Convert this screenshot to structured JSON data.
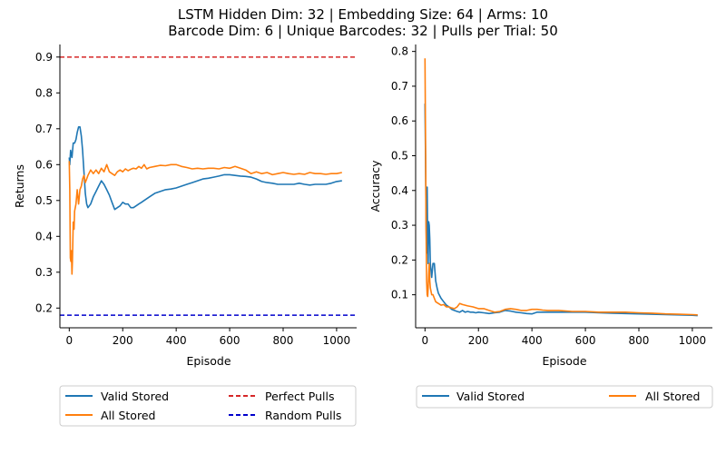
{
  "title_line1": "LSTM Hidden Dim: 32 | Embedding Size: 64 | Arms: 10",
  "title_line2": "Barcode Dim: 6 | Unique Barcodes: 32 | Pulls per Trial: 50",
  "colors": {
    "valid": "#1f77b4",
    "all": "#ff7f0e",
    "perfect": "#d62728",
    "random": "#0000cc"
  },
  "chart_data": [
    {
      "type": "line",
      "xlabel": "Episode",
      "ylabel": "Returns",
      "xlim": [
        -35,
        1075
      ],
      "ylim": [
        0.145,
        0.935
      ],
      "xticks": [
        0,
        200,
        400,
        600,
        800,
        1000
      ],
      "yticks": [
        0.2,
        0.3,
        0.4,
        0.5,
        0.6,
        0.7,
        0.8,
        0.9
      ],
      "ytick_labels": [
        "0.2",
        "0.3",
        "0.4",
        "0.5",
        "0.6",
        "0.7",
        "0.8",
        "0.9"
      ],
      "hlines": [
        {
          "name": "Perfect Pulls",
          "y": 0.9
        },
        {
          "name": "Random Pulls",
          "y": 0.18
        }
      ],
      "legend_position": "below",
      "legend_entries": [
        "Valid Stored",
        "Perfect Pulls",
        "All Stored",
        "Random Pulls"
      ],
      "series": [
        {
          "name": "Valid Stored",
          "x": [
            0,
            2,
            5,
            10,
            15,
            20,
            25,
            30,
            35,
            40,
            45,
            50,
            55,
            60,
            65,
            70,
            80,
            90,
            100,
            110,
            120,
            130,
            140,
            150,
            160,
            170,
            180,
            190,
            200,
            210,
            220,
            230,
            240,
            250,
            260,
            270,
            280,
            300,
            320,
            340,
            360,
            380,
            400,
            420,
            440,
            460,
            480,
            500,
            520,
            540,
            560,
            580,
            600,
            620,
            640,
            660,
            680,
            700,
            720,
            740,
            760,
            780,
            800,
            820,
            840,
            860,
            880,
            900,
            920,
            940,
            960,
            980,
            1000,
            1020
          ],
          "y": [
            0.62,
            0.6,
            0.64,
            0.62,
            0.66,
            0.66,
            0.67,
            0.69,
            0.705,
            0.705,
            0.68,
            0.64,
            0.58,
            0.52,
            0.49,
            0.48,
            0.49,
            0.51,
            0.525,
            0.54,
            0.555,
            0.545,
            0.53,
            0.515,
            0.495,
            0.475,
            0.48,
            0.485,
            0.495,
            0.49,
            0.49,
            0.48,
            0.48,
            0.485,
            0.49,
            0.495,
            0.5,
            0.51,
            0.52,
            0.525,
            0.53,
            0.532,
            0.535,
            0.54,
            0.545,
            0.55,
            0.555,
            0.56,
            0.562,
            0.565,
            0.568,
            0.572,
            0.572,
            0.57,
            0.568,
            0.567,
            0.565,
            0.56,
            0.553,
            0.55,
            0.548,
            0.545,
            0.545,
            0.545,
            0.545,
            0.548,
            0.545,
            0.543,
            0.545,
            0.545,
            0.545,
            0.548,
            0.553,
            0.555
          ]
        },
        {
          "name": "All Stored",
          "x": [
            0,
            2,
            4,
            6,
            8,
            10,
            12,
            15,
            18,
            20,
            25,
            30,
            35,
            40,
            45,
            50,
            55,
            60,
            65,
            70,
            80,
            90,
            100,
            110,
            120,
            130,
            140,
            150,
            160,
            170,
            180,
            190,
            200,
            210,
            220,
            230,
            240,
            250,
            260,
            270,
            280,
            290,
            300,
            320,
            340,
            360,
            380,
            400,
            420,
            440,
            460,
            480,
            500,
            520,
            540,
            560,
            580,
            600,
            620,
            640,
            660,
            680,
            700,
            720,
            740,
            760,
            780,
            800,
            820,
            840,
            860,
            880,
            900,
            920,
            940,
            960,
            980,
            1000,
            1020
          ],
          "y": [
            0.61,
            0.53,
            0.34,
            0.33,
            0.36,
            0.295,
            0.33,
            0.44,
            0.42,
            0.47,
            0.49,
            0.53,
            0.49,
            0.53,
            0.54,
            0.56,
            0.57,
            0.55,
            0.56,
            0.57,
            0.585,
            0.575,
            0.585,
            0.575,
            0.59,
            0.58,
            0.6,
            0.58,
            0.575,
            0.57,
            0.58,
            0.585,
            0.58,
            0.588,
            0.583,
            0.587,
            0.59,
            0.588,
            0.595,
            0.59,
            0.6,
            0.588,
            0.592,
            0.595,
            0.598,
            0.597,
            0.6,
            0.6,
            0.595,
            0.592,
            0.588,
            0.59,
            0.588,
            0.59,
            0.59,
            0.588,
            0.592,
            0.59,
            0.595,
            0.59,
            0.585,
            0.575,
            0.58,
            0.575,
            0.578,
            0.572,
            0.575,
            0.578,
            0.575,
            0.573,
            0.575,
            0.573,
            0.578,
            0.575,
            0.575,
            0.573,
            0.575,
            0.575,
            0.578
          ]
        }
      ]
    },
    {
      "type": "line",
      "xlabel": "Episode",
      "ylabel": "Accuracy",
      "xlim": [
        -35,
        1075
      ],
      "ylim": [
        0.005,
        0.82
      ],
      "xticks": [
        0,
        200,
        400,
        600,
        800,
        1000
      ],
      "yticks": [
        0.1,
        0.2,
        0.3,
        0.4,
        0.5,
        0.6,
        0.7,
        0.8
      ],
      "ytick_labels": [
        "0.1",
        "0.2",
        "0.3",
        "0.4",
        "0.5",
        "0.6",
        "0.7",
        "0.8"
      ],
      "legend_position": "below",
      "legend_entries": [
        "Valid Stored",
        "All Stored"
      ],
      "series": [
        {
          "name": "Valid Stored",
          "x": [
            0,
            2,
            4,
            6,
            8,
            10,
            12,
            14,
            16,
            18,
            20,
            25,
            30,
            35,
            40,
            45,
            50,
            60,
            70,
            80,
            90,
            100,
            110,
            120,
            130,
            140,
            150,
            160,
            170,
            180,
            190,
            200,
            220,
            240,
            260,
            280,
            300,
            320,
            340,
            360,
            380,
            400,
            420,
            440,
            460,
            480,
            500,
            550,
            600,
            650,
            700,
            750,
            800,
            850,
            900,
            950,
            1000,
            1020
          ],
          "y": [
            0.65,
            0.5,
            0.3,
            0.22,
            0.41,
            0.25,
            0.19,
            0.31,
            0.3,
            0.26,
            0.19,
            0.15,
            0.19,
            0.19,
            0.14,
            0.12,
            0.105,
            0.09,
            0.08,
            0.07,
            0.065,
            0.058,
            0.055,
            0.052,
            0.05,
            0.055,
            0.05,
            0.052,
            0.05,
            0.05,
            0.048,
            0.05,
            0.048,
            0.046,
            0.048,
            0.05,
            0.055,
            0.053,
            0.05,
            0.048,
            0.046,
            0.045,
            0.05,
            0.05,
            0.05,
            0.05,
            0.05,
            0.05,
            0.05,
            0.048,
            0.047,
            0.046,
            0.045,
            0.044,
            0.043,
            0.042,
            0.041,
            0.04
          ]
        },
        {
          "name": "All Stored",
          "x": [
            0,
            2,
            4,
            6,
            8,
            10,
            12,
            14,
            16,
            18,
            20,
            25,
            30,
            35,
            40,
            50,
            60,
            70,
            80,
            90,
            100,
            110,
            120,
            130,
            140,
            150,
            160,
            180,
            200,
            220,
            240,
            260,
            280,
            300,
            320,
            340,
            360,
            380,
            400,
            420,
            440,
            460,
            480,
            500,
            550,
            600,
            650,
            700,
            750,
            800,
            850,
            900,
            950,
            1000,
            1020
          ],
          "y": [
            0.78,
            0.55,
            0.29,
            0.14,
            0.1,
            0.095,
            0.12,
            0.16,
            0.19,
            0.14,
            0.12,
            0.1,
            0.1,
            0.09,
            0.08,
            0.075,
            0.07,
            0.072,
            0.065,
            0.065,
            0.062,
            0.06,
            0.065,
            0.075,
            0.072,
            0.07,
            0.068,
            0.065,
            0.06,
            0.06,
            0.055,
            0.05,
            0.052,
            0.058,
            0.06,
            0.058,
            0.055,
            0.055,
            0.058,
            0.058,
            0.056,
            0.055,
            0.055,
            0.055,
            0.052,
            0.052,
            0.05,
            0.05,
            0.05,
            0.048,
            0.047,
            0.045,
            0.044,
            0.043,
            0.042
          ]
        }
      ]
    }
  ]
}
